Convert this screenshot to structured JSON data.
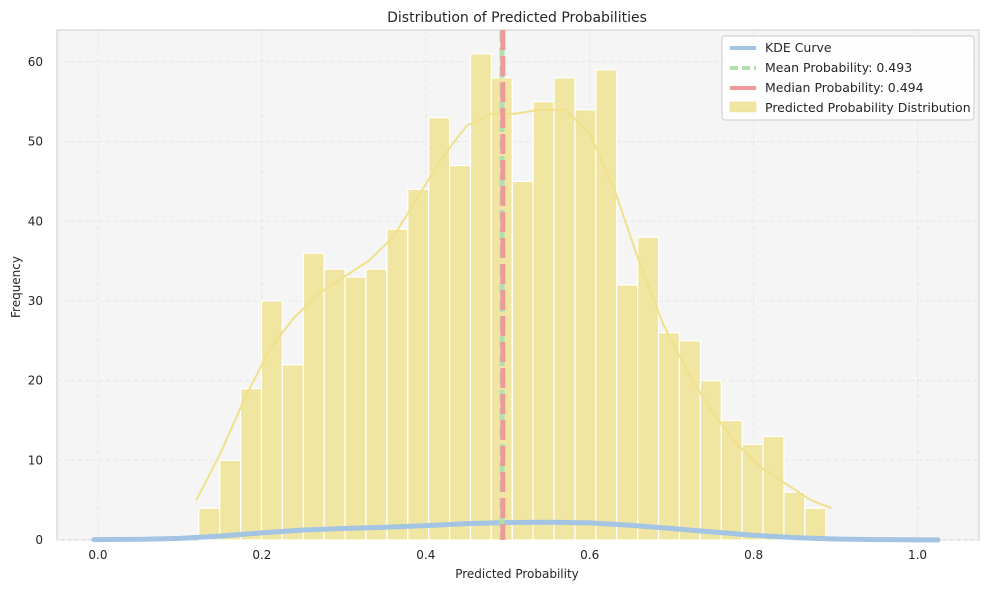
{
  "chart_data": {
    "type": "bar",
    "title": "Distribution of Predicted Probabilities",
    "xlabel": "Predicted Probability",
    "ylabel": "Frequency",
    "xlim": [
      -0.05,
      1.075
    ],
    "ylim": [
      0,
      64
    ],
    "xticks": [
      "0.0",
      "0.2",
      "0.4",
      "0.6",
      "0.8",
      "1.0"
    ],
    "xtick_values": [
      0.0,
      0.2,
      0.4,
      0.6,
      0.8,
      1.0
    ],
    "yticks": [
      "0",
      "10",
      "20",
      "30",
      "40",
      "50",
      "60"
    ],
    "ytick_values": [
      0,
      10,
      20,
      30,
      40,
      50,
      60
    ],
    "grid": true,
    "legend_position": "top-right",
    "legend": [
      "KDE Curve",
      "Mean Probability: 0.493",
      "Median Probability: 0.494",
      "Predicted Probability Distribution"
    ],
    "histogram": {
      "bin_start": 0.123,
      "bin_width": 0.0255,
      "counts": [
        4,
        10,
        19,
        30,
        22,
        36,
        34,
        33,
        34,
        39,
        44,
        53,
        47,
        61,
        58,
        45,
        55,
        58,
        54,
        59,
        32,
        38,
        26,
        25,
        20,
        15,
        12,
        13,
        6,
        4
      ]
    },
    "histogram_kde": {
      "x": [
        0.12,
        0.15,
        0.18,
        0.21,
        0.24,
        0.27,
        0.3,
        0.33,
        0.36,
        0.39,
        0.42,
        0.45,
        0.48,
        0.51,
        0.54,
        0.57,
        0.6,
        0.63,
        0.66,
        0.69,
        0.72,
        0.75,
        0.78,
        0.81,
        0.84,
        0.87,
        0.895
      ],
      "y": [
        5,
        11,
        18,
        24,
        28,
        31,
        33,
        35,
        38,
        43,
        48,
        52,
        53.5,
        53.5,
        54,
        54,
        51,
        44,
        35,
        27,
        21,
        16,
        12,
        9,
        7,
        5,
        4
      ]
    },
    "kde_curve": {
      "x": [
        -0.005,
        0.05,
        0.1,
        0.15,
        0.2,
        0.25,
        0.3,
        0.35,
        0.4,
        0.45,
        0.5,
        0.55,
        0.6,
        0.65,
        0.7,
        0.75,
        0.8,
        0.85,
        0.9,
        0.95,
        1.0,
        1.025
      ],
      "y": [
        0.05,
        0.08,
        0.2,
        0.5,
        0.9,
        1.25,
        1.45,
        1.6,
        1.8,
        2.05,
        2.2,
        2.22,
        2.15,
        1.85,
        1.45,
        1.0,
        0.6,
        0.3,
        0.12,
        0.05,
        0.02,
        0.01
      ]
    },
    "mean": 0.493,
    "median": 0.494,
    "colors": {
      "histogram": "#f0e6a1",
      "histogram_edge": "#ffffff",
      "histogram_kde": "#f0e08a",
      "kde_curve": "#a3c4e2",
      "mean_line": "#b3dfb0",
      "median_line": "#ee9a9a",
      "plot_background": "#f5f5f5",
      "grid": "#e6e6e6"
    }
  }
}
